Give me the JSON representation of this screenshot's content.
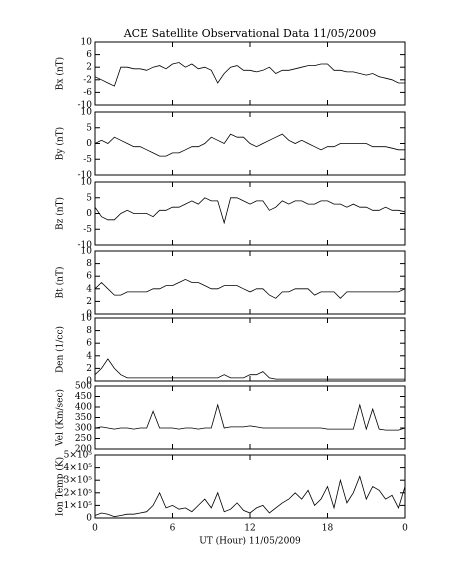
{
  "chart_data": [
    {
      "type": "line",
      "title": "ACE Satellite Observational Data   11/05/2009",
      "ylabel": "Bx (nT)",
      "x": [
        0,
        0.5,
        1,
        1.5,
        2,
        2.5,
        3,
        3.5,
        4,
        4.5,
        5,
        5.5,
        6,
        6.5,
        7,
        7.5,
        8,
        8.5,
        9,
        9.5,
        10,
        10.5,
        11,
        11.5,
        12,
        12.5,
        13,
        13.5,
        14,
        14.5,
        15,
        15.5,
        16,
        16.5,
        17,
        17.5,
        18,
        18.5,
        19,
        19.5,
        20,
        20.5,
        21,
        21.5,
        22,
        22.5,
        23,
        23.5,
        24
      ],
      "values": [
        -1,
        -2,
        -3,
        -4,
        2,
        2,
        1.5,
        1.5,
        1,
        2,
        2.5,
        1.5,
        3,
        3.5,
        2,
        3,
        1.5,
        2,
        1,
        -3,
        0,
        2,
        2.5,
        1,
        1,
        0.5,
        1,
        2,
        0,
        1,
        1,
        1.5,
        2,
        2.5,
        2.5,
        3,
        3,
        1,
        1,
        0.5,
        0.5,
        0,
        -0.5,
        0,
        -1,
        -1.5,
        -2,
        -3,
        -3
      ],
      "color": "#000000",
      "xlim": [
        0,
        24
      ],
      "ylim": [
        -10,
        10
      ],
      "yticks": [
        10,
        6,
        2,
        -2,
        -6,
        -10
      ]
    },
    {
      "type": "line",
      "ylabel": "By (nT)",
      "x": [
        0,
        0.5,
        1,
        1.5,
        2,
        2.5,
        3,
        3.5,
        4,
        4.5,
        5,
        5.5,
        6,
        6.5,
        7,
        7.5,
        8,
        8.5,
        9,
        9.5,
        10,
        10.5,
        11,
        11.5,
        12,
        12.5,
        13,
        13.5,
        14,
        14.5,
        15,
        15.5,
        16,
        16.5,
        17,
        17.5,
        18,
        18.5,
        19,
        19.5,
        20,
        20.5,
        21,
        21.5,
        22,
        22.5,
        23,
        23.5,
        24
      ],
      "values": [
        0,
        1,
        0,
        2,
        1,
        0,
        -1,
        -1,
        -2,
        -3,
        -4,
        -4,
        -3,
        -3,
        -2,
        -1,
        -1,
        0,
        2,
        1,
        0,
        3,
        2,
        2,
        0,
        -1,
        0,
        1,
        2,
        3,
        1,
        0,
        1,
        0,
        -1,
        -2,
        -1,
        -1,
        0,
        0,
        0,
        0,
        0,
        -1,
        -1,
        -1,
        -1.5,
        -2,
        -2
      ],
      "color": "#000000",
      "xlim": [
        0,
        24
      ],
      "ylim": [
        -10,
        10
      ],
      "yticks": [
        10,
        5,
        0,
        -5,
        -10
      ]
    },
    {
      "type": "line",
      "ylabel": "Bz (nT)",
      "x": [
        0,
        0.5,
        1,
        1.5,
        2,
        2.5,
        3,
        3.5,
        4,
        4.5,
        5,
        5.5,
        6,
        6.5,
        7,
        7.5,
        8,
        8.5,
        9,
        9.5,
        10,
        10.5,
        11,
        11.5,
        12,
        12.5,
        13,
        13.5,
        14,
        14.5,
        15,
        15.5,
        16,
        16.5,
        17,
        17.5,
        18,
        18.5,
        19,
        19.5,
        20,
        20.5,
        21,
        21.5,
        22,
        22.5,
        23,
        23.5,
        24
      ],
      "values": [
        2,
        -1,
        -2,
        -2,
        0,
        1,
        0,
        0,
        0,
        -1,
        1,
        1,
        2,
        2,
        3,
        4,
        3,
        5,
        4,
        4,
        -3,
        5,
        5,
        4,
        3,
        4,
        4,
        1,
        2,
        4,
        3,
        4,
        4,
        3,
        3,
        4,
        4,
        3,
        3,
        2,
        3,
        2,
        2,
        1,
        1,
        2,
        1,
        1,
        0.5
      ],
      "color": "#000000",
      "xlim": [
        0,
        24
      ],
      "ylim": [
        -10,
        10
      ],
      "yticks": [
        10,
        5,
        0,
        -5,
        -10
      ]
    },
    {
      "type": "line",
      "ylabel": "Bt (nT)",
      "x": [
        0,
        0.5,
        1,
        1.5,
        2,
        2.5,
        3,
        3.5,
        4,
        4.5,
        5,
        5.5,
        6,
        6.5,
        7,
        7.5,
        8,
        8.5,
        9,
        9.5,
        10,
        10.5,
        11,
        11.5,
        12,
        12.5,
        13,
        13.5,
        14,
        14.5,
        15,
        15.5,
        16,
        16.5,
        17,
        17.5,
        18,
        18.5,
        19,
        19.5,
        20,
        20.5,
        21,
        21.5,
        22,
        22.5,
        23,
        23.5,
        24
      ],
      "values": [
        4,
        5,
        4,
        3,
        3,
        3.5,
        3.5,
        3.5,
        3.5,
        4,
        4,
        4.5,
        4.5,
        5,
        5.5,
        5,
        5,
        4.5,
        4,
        4,
        4.5,
        4.5,
        4.5,
        4,
        3.5,
        4,
        4,
        3,
        2.5,
        3.5,
        3.5,
        4,
        4,
        4,
        3,
        3.5,
        3.5,
        3.5,
        2.5,
        3.5,
        3.5,
        3.5,
        3.5,
        3.5,
        3.5,
        3.5,
        3.5,
        3.5,
        4
      ],
      "color": "#000000",
      "xlim": [
        0,
        24
      ],
      "ylim": [
        0,
        10
      ],
      "yticks": [
        10,
        8,
        6,
        4,
        2,
        0
      ]
    },
    {
      "type": "line",
      "ylabel": "Den (1/cc)",
      "x": [
        0,
        0.5,
        1,
        1.5,
        2,
        2.5,
        3,
        3.5,
        4,
        4.5,
        5,
        5.5,
        6,
        6.5,
        7,
        7.5,
        8,
        8.5,
        9,
        9.5,
        10,
        10.5,
        11,
        11.5,
        12,
        12.5,
        13,
        13.5,
        14,
        14.5,
        15,
        15.5,
        16,
        16.5,
        17,
        17.5,
        18,
        18.5,
        19,
        19.5,
        20,
        20.5,
        21,
        21.5,
        22,
        22.5,
        23,
        23.5,
        24
      ],
      "values": [
        1,
        2,
        3.5,
        2,
        1,
        0.5,
        0.5,
        0.5,
        0.5,
        0.5,
        0.5,
        0.5,
        0.5,
        0.5,
        0.5,
        0.5,
        0.5,
        0.5,
        0.5,
        0.5,
        1,
        0.5,
        0.5,
        0.5,
        1,
        1,
        1.5,
        0.5,
        0.3,
        0.3,
        0.3,
        0.3,
        0.3,
        0.3,
        0.3,
        0.3,
        0.3,
        0.3,
        0.3,
        0.3,
        0.3,
        0.3,
        0.3,
        0.3,
        0.3,
        0.3,
        0.3,
        0.3,
        0.3
      ],
      "color": "#000000",
      "xlim": [
        0,
        24
      ],
      "ylim": [
        0,
        10
      ],
      "yticks": [
        10,
        8,
        6,
        4,
        2,
        0
      ]
    },
    {
      "type": "line",
      "ylabel": "Vel (Km/sec)",
      "x": [
        0,
        0.5,
        1,
        1.5,
        2,
        2.5,
        3,
        3.5,
        4,
        4.5,
        5,
        5.5,
        6,
        6.5,
        7,
        7.5,
        8,
        8.5,
        9,
        9.5,
        10,
        10.5,
        11,
        11.5,
        12,
        12.5,
        13,
        13.5,
        14,
        14.5,
        15,
        15.5,
        16,
        16.5,
        17,
        17.5,
        18,
        18.5,
        19,
        19.5,
        20,
        20.5,
        21,
        21.5,
        22,
        22.5,
        23,
        23.5,
        24
      ],
      "values": [
        300,
        305,
        300,
        295,
        300,
        300,
        295,
        300,
        300,
        380,
        300,
        300,
        300,
        295,
        300,
        300,
        295,
        300,
        300,
        410,
        300,
        305,
        305,
        305,
        310,
        305,
        300,
        300,
        300,
        300,
        300,
        300,
        300,
        300,
        300,
        300,
        295,
        295,
        295,
        295,
        295,
        410,
        295,
        390,
        295,
        290,
        290,
        290,
        300
      ],
      "color": "#000000",
      "xlim": [
        0,
        24
      ],
      "ylim": [
        200,
        500
      ],
      "yticks": [
        500,
        450,
        400,
        350,
        300,
        250,
        200
      ]
    },
    {
      "type": "line",
      "ylabel": "Ion Temp (K)",
      "xlabel": "UT (Hour)   11/05/2009",
      "x": [
        0,
        0.5,
        1,
        1.5,
        2,
        2.5,
        3,
        3.5,
        4,
        4.5,
        5,
        5.5,
        6,
        6.5,
        7,
        7.5,
        8,
        8.5,
        9,
        9.5,
        10,
        10.5,
        11,
        11.5,
        12,
        12.5,
        13,
        13.5,
        14,
        14.5,
        15,
        15.5,
        16,
        16.5,
        17,
        17.5,
        18,
        18.5,
        19,
        19.5,
        20,
        20.5,
        21,
        21.5,
        22,
        22.5,
        23,
        23.5,
        24
      ],
      "values": [
        20000,
        40000,
        30000,
        10000,
        20000,
        30000,
        30000,
        40000,
        50000,
        100000,
        200000,
        80000,
        100000,
        70000,
        80000,
        50000,
        100000,
        150000,
        80000,
        200000,
        50000,
        70000,
        120000,
        60000,
        40000,
        80000,
        100000,
        40000,
        80000,
        120000,
        150000,
        200000,
        150000,
        220000,
        100000,
        150000,
        250000,
        80000,
        300000,
        120000,
        200000,
        330000,
        150000,
        250000,
        220000,
        150000,
        180000,
        80000,
        250000
      ],
      "color": "#000000",
      "xlim": [
        0,
        24
      ],
      "ylim": [
        0,
        500000
      ],
      "yticks": [
        {
          "value": 500000,
          "label": "5×10⁵"
        },
        {
          "value": 400000,
          "label": "4×10⁵"
        },
        {
          "value": 300000,
          "label": "3×10⁵"
        },
        {
          "value": 200000,
          "label": "2×10⁵"
        },
        {
          "value": 100000,
          "label": "1×10⁵"
        },
        0
      ],
      "xticks": [
        0,
        6,
        12,
        18,
        {
          "value": 24,
          "label": "0"
        }
      ]
    }
  ]
}
